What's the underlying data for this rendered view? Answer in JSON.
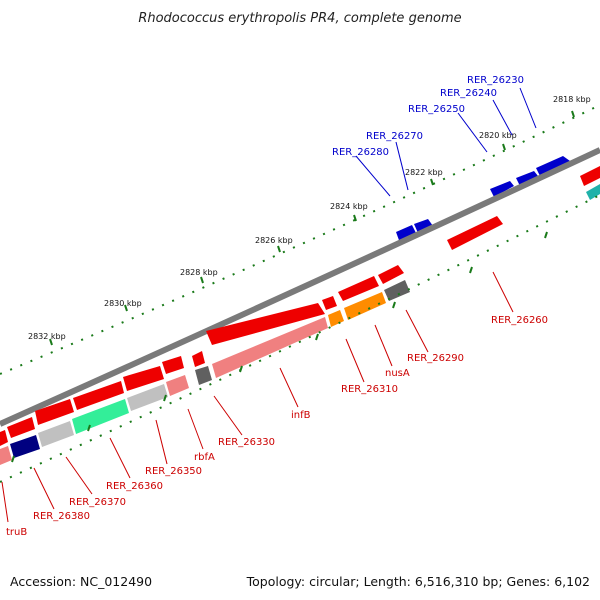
{
  "title": "Rhodococcus erythropolis PR4, complete genome",
  "footer": {
    "accession": "Accession: NC_012490",
    "summary": "Topology: circular; Length: 6,516,310 bp; Genes: 6,102"
  },
  "colors": {
    "backbone": "#808080",
    "tick": "#1a7a1a",
    "label_red": "#cc0000",
    "label_blue": "#0000cc",
    "gene_red": "#ee0000",
    "gene_pink": "#f08080",
    "gene_blue": "#0000cc",
    "gene_navy": "#000080",
    "gene_orange": "#ff8c00",
    "gene_green": "#33ee99",
    "gene_lightgray": "#c0c0c0",
    "gene_darkgray": "#606060",
    "gene_teal": "#20b2aa"
  },
  "ticks": {
    "outer": [
      "2818 kbp",
      "2820 kbp",
      "2822 kbp",
      "2824 kbp",
      "2826 kbp",
      "2828 kbp",
      "2830 kbp",
      "2832 kbp"
    ]
  },
  "genes": {
    "labeled_blue": [
      "RER_26230",
      "RER_26240",
      "RER_26250",
      "RER_26270",
      "RER_26280"
    ],
    "labeled_red": [
      "RER_26260",
      "RER_26290",
      "nusA",
      "RER_26310",
      "infB",
      "RER_26330",
      "rbfA",
      "RER_26350",
      "RER_26360",
      "RER_26370",
      "RER_26380",
      "truB"
    ]
  }
}
